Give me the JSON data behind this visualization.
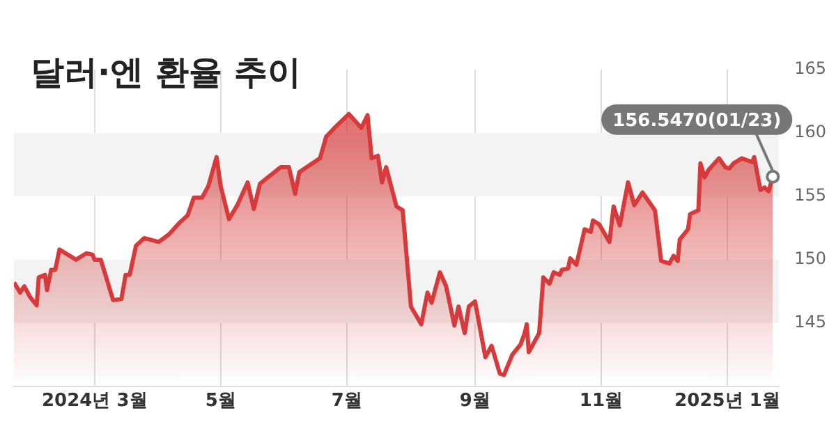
{
  "chart_data": {
    "type": "area",
    "title": "달러·엔 환율 추이",
    "color": "#d63a3a",
    "x": [
      "2024-01-22",
      "2024-01-25",
      "2024-01-27",
      "2024-01-30",
      "2024-02-02",
      "2024-02-03",
      "2024-02-06",
      "2024-02-07",
      "2024-02-09",
      "2024-02-11",
      "2024-02-13",
      "2024-02-21",
      "2024-02-26",
      "2024-02-29",
      "2024-03-01",
      "2024-03-04",
      "2024-03-10",
      "2024-03-14",
      "2024-03-16",
      "2024-03-18",
      "2024-03-21",
      "2024-03-25",
      "2024-04-01",
      "2024-04-06",
      "2024-04-11",
      "2024-04-15",
      "2024-04-18",
      "2024-04-22",
      "2024-04-25",
      "2024-04-29",
      "2024-05-01",
      "2024-05-05",
      "2024-05-09",
      "2024-05-14",
      "2024-05-17",
      "2024-05-20",
      "2024-05-30",
      "2024-06-03",
      "2024-06-06",
      "2024-06-08",
      "2024-06-18",
      "2024-06-21",
      "2024-06-25",
      "2024-07-02",
      "2024-07-08",
      "2024-07-11",
      "2024-07-13",
      "2024-07-16",
      "2024-07-18",
      "2024-07-20",
      "2024-07-25",
      "2024-07-28",
      "2024-08-01",
      "2024-08-06",
      "2024-08-09",
      "2024-08-11",
      "2024-08-15",
      "2024-08-18",
      "2024-08-22",
      "2024-08-24",
      "2024-08-27",
      "2024-08-29",
      "2024-09-01",
      "2024-09-06",
      "2024-09-09",
      "2024-09-13",
      "2024-09-15",
      "2024-09-19",
      "2024-09-23",
      "2024-09-25",
      "2024-09-26",
      "2024-09-27",
      "2024-10-02",
      "2024-10-04",
      "2024-10-07",
      "2024-10-09",
      "2024-10-12",
      "2024-10-13",
      "2024-10-16",
      "2024-10-17",
      "2024-10-20",
      "2024-10-24",
      "2024-10-27",
      "2024-10-28",
      "2024-10-31",
      "2024-11-05",
      "2024-11-07",
      "2024-11-10",
      "2024-11-14",
      "2024-11-17",
      "2024-11-21",
      "2024-11-27",
      "2024-11-30",
      "2024-12-04",
      "2024-12-06",
      "2024-12-08",
      "2024-12-09",
      "2024-12-13",
      "2024-12-14",
      "2024-12-18",
      "2024-12-19",
      "2024-12-21",
      "2024-12-23",
      "2024-12-28",
      "2024-12-31",
      "2025-01-02",
      "2025-01-04",
      "2025-01-08",
      "2025-01-13",
      "2025-01-14",
      "2025-01-17",
      "2025-01-19",
      "2025-01-21",
      "2025-01-23"
    ],
    "values": [
      148.2,
      147.4,
      147.9,
      147.0,
      146.4,
      148.6,
      148.8,
      147.6,
      149.2,
      149.2,
      150.8,
      150.0,
      150.5,
      150.4,
      150.0,
      150.0,
      146.8,
      146.9,
      148.8,
      148.8,
      151.1,
      151.7,
      151.4,
      152.0,
      152.9,
      153.5,
      154.9,
      154.9,
      155.8,
      158.1,
      155.8,
      153.2,
      154.3,
      156.1,
      154.0,
      156.0,
      157.3,
      157.3,
      155.2,
      156.9,
      158.0,
      159.7,
      160.4,
      161.5,
      160.4,
      161.4,
      158.0,
      158.2,
      156.1,
      157.3,
      154.2,
      153.9,
      146.3,
      144.9,
      147.4,
      146.6,
      149.0,
      147.9,
      144.8,
      146.3,
      144.2,
      146.3,
      146.7,
      142.3,
      143.2,
      141.0,
      140.9,
      142.5,
      143.3,
      144.2,
      144.9,
      142.7,
      144.2,
      148.6,
      148.1,
      149.0,
      148.8,
      149.2,
      149.3,
      150.1,
      149.6,
      152.4,
      152.2,
      153.1,
      152.8,
      151.4,
      154.2,
      152.7,
      156.1,
      154.3,
      155.3,
      153.9,
      149.9,
      149.7,
      150.3,
      149.9,
      151.6,
      152.4,
      153.6,
      153.9,
      157.6,
      156.5,
      157.1,
      158.0,
      157.3,
      157.2,
      157.6,
      158.0,
      157.7,
      158.1,
      155.5,
      155.7,
      155.4,
      156.547
    ],
    "xlim": [
      "2024-01-22",
      "2025-01-26"
    ],
    "xticks": [
      {
        "value": "2024-03-01",
        "label": "2024년 3월"
      },
      {
        "value": "2024-05-01",
        "label": "5월"
      },
      {
        "value": "2024-07-01",
        "label": "7월"
      },
      {
        "value": "2024-09-01",
        "label": "9월"
      },
      {
        "value": "2024-11-01",
        "label": "11월"
      },
      {
        "value": "2025-01-01",
        "label": "2025년 1월"
      }
    ],
    "ylim": [
      140,
      165
    ],
    "yticks": [
      145,
      150,
      155,
      160,
      165
    ],
    "grid": true,
    "annotations": [
      {
        "text": "156.5470(01/23)",
        "x": "2025-01-23",
        "y": 156.547
      }
    ]
  }
}
